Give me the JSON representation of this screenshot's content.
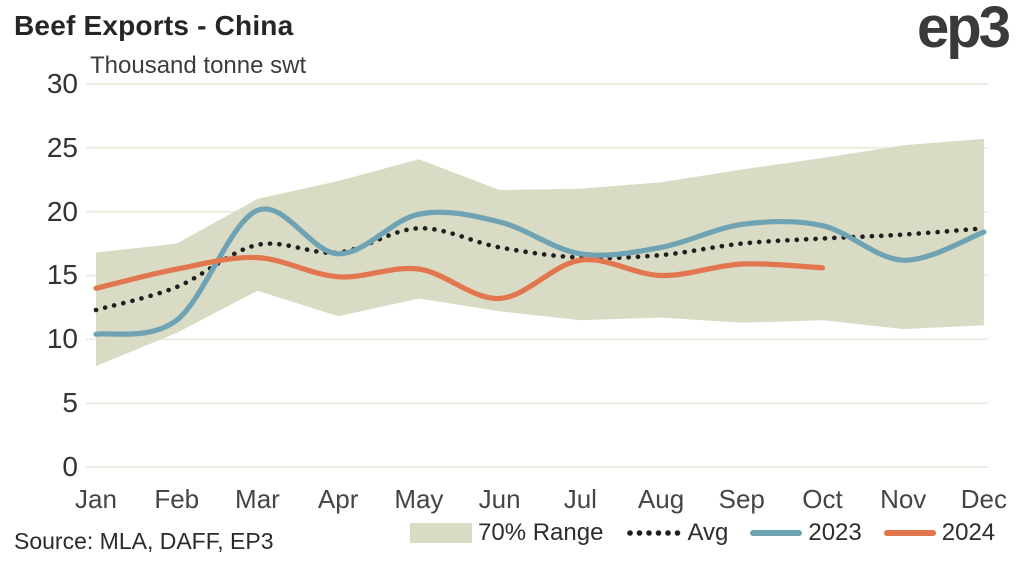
{
  "header": {
    "title": "Beef Exports - China",
    "logo": "ep3"
  },
  "footer": {
    "source": "Source: MLA, DAFF, EP3"
  },
  "chart_data": {
    "type": "line",
    "title": "Beef Exports - China",
    "ylabel": "Thousand tonne swt",
    "categories": [
      "Jan",
      "Feb",
      "Mar",
      "Apr",
      "May",
      "Jun",
      "Jul",
      "Aug",
      "Sep",
      "Oct",
      "Nov",
      "Dec"
    ],
    "ylim": [
      0,
      30
    ],
    "yticks": [
      0,
      5,
      10,
      15,
      20,
      25,
      30
    ],
    "grid": true,
    "legend_position": "bottom",
    "band": {
      "name": "70% Range",
      "color": "#d9dbc5",
      "upper": [
        16.8,
        17.5,
        21.0,
        22.4,
        24.1,
        21.7,
        21.8,
        22.3,
        23.3,
        24.2,
        25.2,
        25.7
      ],
      "lower": [
        7.9,
        10.5,
        13.8,
        11.8,
        13.2,
        12.2,
        11.5,
        11.7,
        11.3,
        11.5,
        10.8,
        11.1
      ]
    },
    "series": [
      {
        "name": "Avg",
        "style": "dotted",
        "color": "#1f1f1f",
        "values": [
          12.3,
          14.1,
          17.4,
          16.8,
          18.7,
          17.2,
          16.4,
          16.6,
          17.5,
          17.9,
          18.2,
          18.7
        ]
      },
      {
        "name": "2023",
        "style": "solid",
        "color": "#6fa3b3",
        "values": [
          10.4,
          11.5,
          20.1,
          16.7,
          19.8,
          19.2,
          16.7,
          17.2,
          19.0,
          18.9,
          16.2,
          18.4
        ]
      },
      {
        "name": "2024",
        "style": "solid",
        "color": "#e2764e",
        "values": [
          14.0,
          15.5,
          16.4,
          14.9,
          15.5,
          13.2,
          16.2,
          15.0,
          15.9,
          15.6,
          null,
          null
        ]
      }
    ],
    "grid_color": "#eeede2"
  }
}
